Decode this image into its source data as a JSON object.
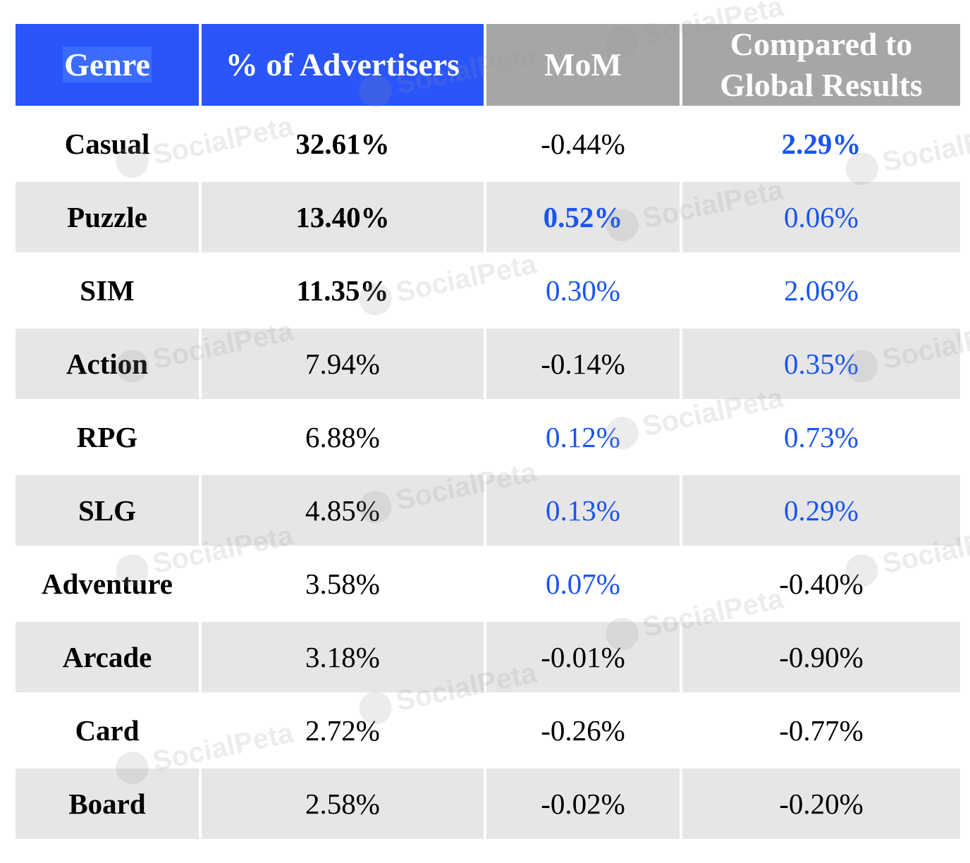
{
  "chart_data": {
    "type": "table",
    "columns": [
      "Genre",
      "% of Advertisers",
      "MoM",
      "Compared to Global Results"
    ],
    "rows": [
      {
        "genre": "Casual",
        "share": "32.61%",
        "mom": "-0.44%",
        "global": "2.29%"
      },
      {
        "genre": "Puzzle",
        "share": "13.40%",
        "mom": "0.52%",
        "global": "0.06%"
      },
      {
        "genre": "SIM",
        "share": "11.35%",
        "mom": "0.30%",
        "global": "2.06%"
      },
      {
        "genre": "Action",
        "share": "7.94%",
        "mom": "-0.14%",
        "global": "0.35%"
      },
      {
        "genre": "RPG",
        "share": "6.88%",
        "mom": "0.12%",
        "global": "0.73%"
      },
      {
        "genre": "SLG",
        "share": "4.85%",
        "mom": "0.13%",
        "global": "0.29%"
      },
      {
        "genre": "Adventure",
        "share": "3.58%",
        "mom": "0.07%",
        "global": "-0.40%"
      },
      {
        "genre": "Arcade",
        "share": "3.18%",
        "mom": "-0.01%",
        "global": "-0.90%"
      },
      {
        "genre": "Card",
        "share": "2.72%",
        "mom": "-0.26%",
        "global": "-0.77%"
      },
      {
        "genre": "Board",
        "share": "2.58%",
        "mom": "-0.02%",
        "global": "-0.20%"
      }
    ],
    "header_colors": {
      "primary": "#2a55fb",
      "secondary": "#a6a6a6"
    },
    "positive_color": "#1a55f2",
    "stripe_color": "#e6e6e6"
  },
  "watermark": {
    "text": "SocialPeta",
    "icon": "socialpeta-logo-icon"
  }
}
